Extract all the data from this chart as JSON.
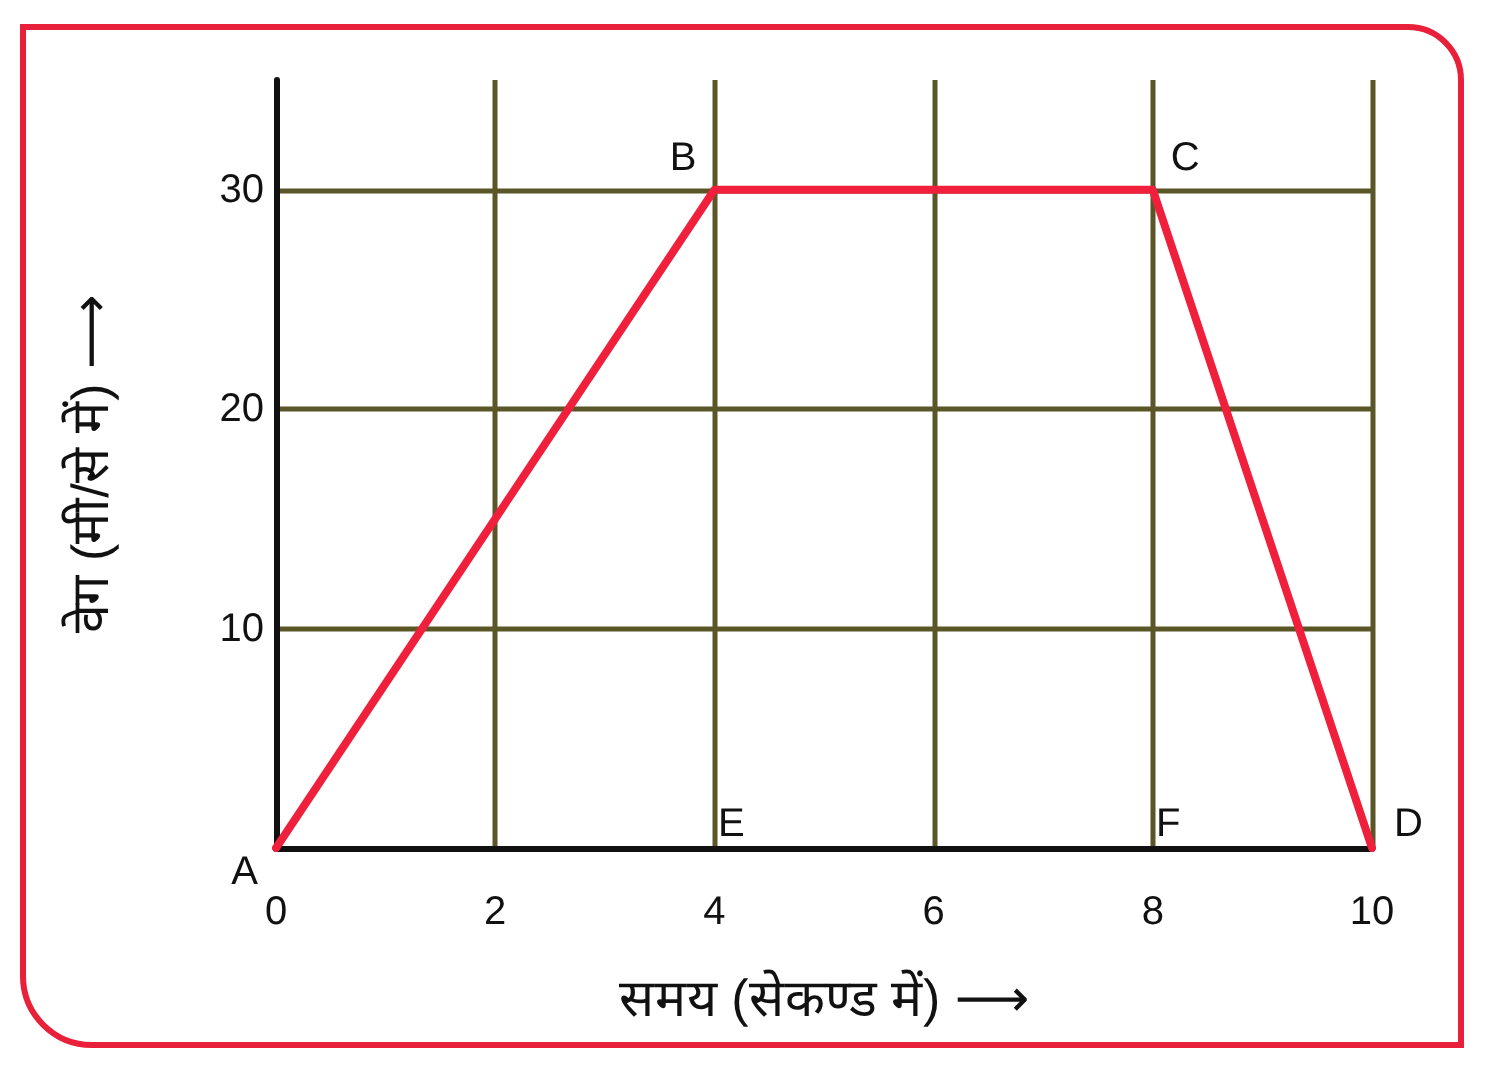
{
  "chart_data": {
    "type": "line",
    "xlabel": "समय (सेकण्ड में) ⟶",
    "ylabel": "वेग (मी/से में) ⟶",
    "x": [
      0,
      4,
      8,
      10
    ],
    "series": [
      {
        "color": "#f0203c",
        "values": [
          0,
          30,
          30,
          0
        ]
      }
    ],
    "xlim": [
      0,
      10
    ],
    "xticks": [
      0,
      2,
      4,
      6,
      8,
      10
    ],
    "ylim": [
      0,
      35
    ],
    "yticks": [
      10,
      20,
      30
    ],
    "grid": true,
    "marker": "none",
    "line_style": "solid",
    "annotations": [
      {
        "text": "A",
        "x": 0,
        "y": 0
      },
      {
        "text": "B",
        "x": 4,
        "y": 30
      },
      {
        "text": "C",
        "x": 8,
        "y": 30
      },
      {
        "text": "D",
        "x": 10,
        "y": 0
      },
      "E",
      "F"
    ]
  }
}
